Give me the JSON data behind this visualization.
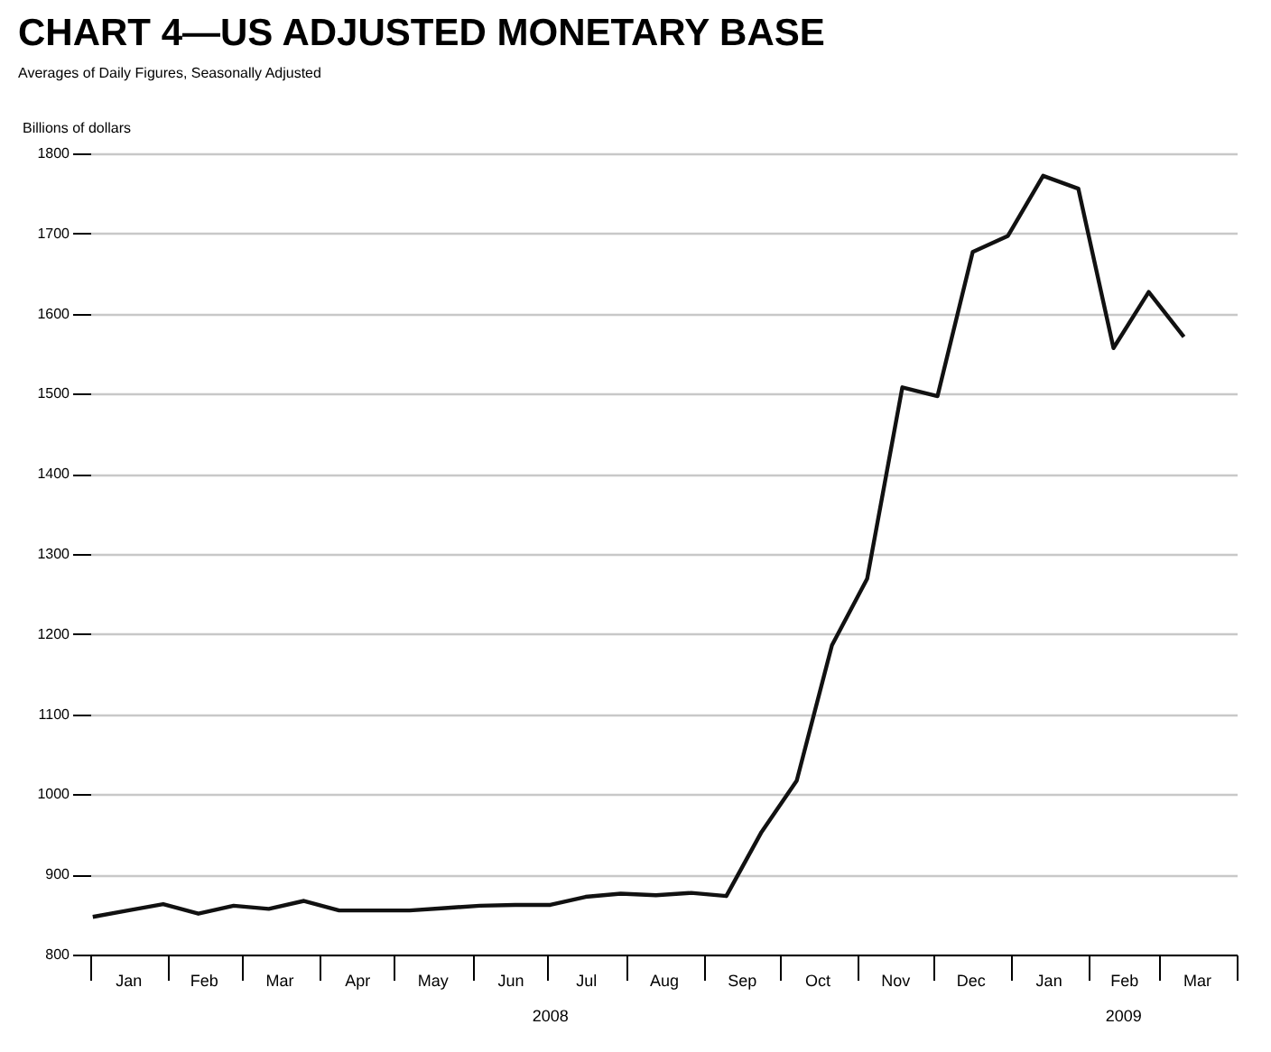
{
  "chart_data": {
    "type": "line",
    "title": "CHART 4—US ADJUSTED MONETARY BASE",
    "subtitle": "Averages of Daily Figures, Seasonally Adjusted",
    "ylabel": "Billions of dollars",
    "x": [
      "2008-01-02",
      "2008-01-16",
      "2008-01-30",
      "2008-02-13",
      "2008-02-27",
      "2008-03-12",
      "2008-03-26",
      "2008-04-09",
      "2008-04-23",
      "2008-05-07",
      "2008-05-21",
      "2008-06-04",
      "2008-06-18",
      "2008-07-02",
      "2008-07-16",
      "2008-07-30",
      "2008-08-13",
      "2008-08-27",
      "2008-09-10",
      "2008-09-24",
      "2008-10-08",
      "2008-10-22",
      "2008-11-05",
      "2008-11-19",
      "2008-12-03",
      "2008-12-17",
      "2008-12-31",
      "2009-01-14",
      "2009-01-28",
      "2009-02-11",
      "2009-02-25",
      "2009-03-11"
    ],
    "series": [
      {
        "color": "#111111",
        "values": [
          847,
          855,
          863,
          851,
          861,
          857,
          867,
          855,
          855,
          855,
          858,
          861,
          862,
          862,
          872,
          876,
          874,
          877,
          873,
          953,
          1017,
          1186,
          1269,
          1508,
          1497,
          1677,
          1697,
          1772,
          1756,
          1557,
          1627,
          1571
        ]
      }
    ],
    "xlim": [
      "2008-01-01",
      "2009-04-01"
    ],
    "xticks": [
      {
        "value": "2008-01-01",
        "label": null
      },
      {
        "value": "2008-01-16",
        "label": "Jan"
      },
      {
        "value": "2008-02-01",
        "label": null
      },
      {
        "value": "2008-02-15",
        "label": "Feb"
      },
      {
        "value": "2008-03-01",
        "label": null
      },
      {
        "value": "2008-03-16",
        "label": "Mar"
      },
      {
        "value": "2008-04-01",
        "label": null
      },
      {
        "value": "2008-04-16",
        "label": "Apr"
      },
      {
        "value": "2008-05-01",
        "label": null
      },
      {
        "value": "2008-05-16",
        "label": "May"
      },
      {
        "value": "2008-06-01",
        "label": null
      },
      {
        "value": "2008-06-16",
        "label": "Jun"
      },
      {
        "value": "2008-07-01",
        "label": null
      },
      {
        "value": "2008-07-16",
        "label": "Jul"
      },
      {
        "value": "2008-08-01",
        "label": null
      },
      {
        "value": "2008-08-16",
        "label": "Aug"
      },
      {
        "value": "2008-09-01",
        "label": null
      },
      {
        "value": "2008-09-16",
        "label": "Sep"
      },
      {
        "value": "2008-10-01",
        "label": null
      },
      {
        "value": "2008-10-16",
        "label": "Oct"
      },
      {
        "value": "2008-11-01",
        "label": null
      },
      {
        "value": "2008-11-16",
        "label": "Nov"
      },
      {
        "value": "2008-12-01",
        "label": null
      },
      {
        "value": "2008-12-16",
        "label": "Dec"
      },
      {
        "value": "2009-01-01",
        "label": null
      },
      {
        "value": "2009-01-16",
        "label": "Jan"
      },
      {
        "value": "2009-02-01",
        "label": null
      },
      {
        "value": "2009-02-15",
        "label": "Feb"
      },
      {
        "value": "2009-03-01",
        "label": null
      },
      {
        "value": "2009-03-16",
        "label": "Mar"
      },
      {
        "value": "2009-04-01",
        "label": null
      }
    ],
    "ylim": [
      800,
      1800
    ],
    "yticks": [
      800,
      900,
      1000,
      1100,
      1200,
      1300,
      1400,
      1500,
      1600,
      1700,
      1800
    ],
    "grid": "y",
    "line_style": "solid",
    "annotations": [
      "2008",
      "2009"
    ]
  }
}
